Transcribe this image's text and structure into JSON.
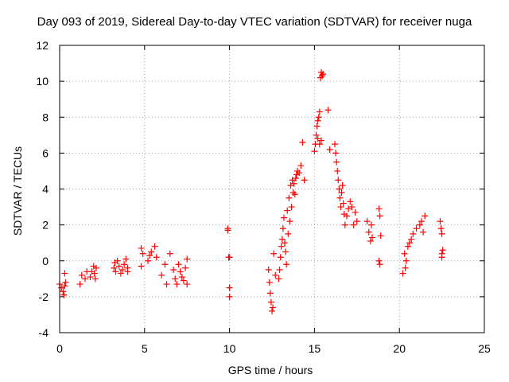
{
  "chart_data": {
    "type": "scatter",
    "title": "Day 093 of 2019, Sidereal Day-to-day VTEC variation (SDTVAR) for receiver nuga",
    "xlabel": "GPS time / hours",
    "ylabel": "SDTVAR / TECUs",
    "xlim": [
      0,
      25
    ],
    "ylim": [
      -4,
      12
    ],
    "xticks": [
      0,
      5,
      10,
      15,
      20,
      25
    ],
    "yticks": [
      -4,
      -2,
      0,
      2,
      4,
      6,
      8,
      10,
      12
    ],
    "grid": true,
    "marker": "+",
    "color": "#ff0000",
    "x": [
      0.0,
      0.1,
      0.2,
      0.25,
      0.3,
      0.3,
      0.35,
      1.2,
      1.3,
      1.5,
      1.6,
      1.8,
      1.9,
      2.0,
      2.05,
      2.1,
      2.15,
      3.2,
      3.25,
      3.3,
      3.4,
      3.5,
      3.6,
      3.7,
      3.8,
      3.9,
      4.0,
      4.0,
      4.8,
      4.8,
      4.9,
      5.2,
      5.3,
      5.4,
      5.6,
      5.7,
      6.0,
      6.2,
      6.3,
      6.5,
      6.7,
      6.8,
      6.9,
      7.0,
      7.1,
      7.2,
      7.3,
      7.4,
      7.5,
      7.5,
      9.9,
      9.9,
      9.95,
      10.0,
      10.0,
      10.0,
      12.3,
      12.35,
      12.4,
      12.45,
      12.5,
      12.55,
      12.6,
      12.7,
      12.9,
      12.95,
      13.0,
      13.05,
      13.1,
      13.15,
      13.2,
      13.25,
      13.3,
      13.35,
      13.4,
      13.45,
      13.5,
      13.55,
      13.6,
      13.65,
      13.7,
      13.75,
      13.8,
      13.85,
      13.9,
      13.95,
      14.0,
      14.1,
      14.2,
      14.3,
      14.4,
      15.0,
      15.05,
      15.1,
      15.15,
      15.2,
      15.25,
      15.3,
      15.35,
      15.4,
      15.45,
      15.2,
      15.3,
      15.4,
      15.5,
      15.8,
      15.9,
      16.2,
      16.25,
      16.3,
      16.35,
      16.4,
      16.45,
      16.5,
      16.55,
      16.6,
      16.65,
      16.7,
      16.75,
      16.8,
      16.9,
      17.0,
      17.1,
      17.2,
      17.3,
      17.4,
      17.5,
      18.1,
      18.2,
      18.3,
      18.35,
      18.4,
      18.8,
      18.85,
      18.9,
      18.8,
      18.85,
      20.2,
      20.3,
      20.35,
      20.4,
      20.5,
      20.6,
      20.7,
      20.8,
      21.0,
      21.2,
      21.3,
      21.4,
      21.5,
      22.4,
      22.45,
      22.5,
      22.55,
      22.5,
      22.5
    ],
    "y": [
      -1.3,
      -1.5,
      -1.7,
      -1.9,
      -1.4,
      -0.7,
      -1.2,
      -1.3,
      -0.8,
      -1.0,
      -0.6,
      -0.9,
      -0.6,
      -0.3,
      -0.7,
      -1.0,
      -0.4,
      -0.4,
      -0.1,
      -0.6,
      0.0,
      -0.3,
      -0.7,
      -0.5,
      -0.2,
      0.1,
      -0.4,
      -0.6,
      0.7,
      -0.3,
      0.4,
      0.0,
      0.3,
      0.5,
      0.8,
      0.2,
      -0.8,
      -0.2,
      -1.3,
      0.4,
      -0.5,
      -1.0,
      -1.3,
      -0.2,
      -0.6,
      -0.9,
      -1.1,
      -0.4,
      -1.3,
      0.1,
      1.8,
      1.7,
      0.2,
      0.2,
      -1.5,
      -2.0,
      -0.5,
      -1.2,
      -1.8,
      -2.3,
      -2.8,
      -2.6,
      0.4,
      -0.8,
      -1.0,
      -0.5,
      0.2,
      0.8,
      1.2,
      1.8,
      2.4,
      1.0,
      0.5,
      -0.2,
      2.8,
      1.5,
      3.5,
      2.2,
      4.2,
      3.0,
      4.5,
      3.8,
      4.3,
      3.7,
      4.6,
      4.8,
      5.0,
      4.9,
      5.3,
      6.6,
      4.5,
      6.1,
      6.5,
      7.0,
      7.5,
      7.8,
      8.0,
      8.3,
      10.2,
      10.5,
      10.3,
      6.8,
      6.5,
      6.7,
      10.4,
      8.4,
      6.2,
      6.5,
      6.0,
      5.5,
      5.0,
      4.5,
      4.0,
      3.5,
      3.0,
      3.8,
      4.2,
      3.2,
      2.6,
      2.0,
      2.5,
      2.9,
      3.3,
      3.0,
      2.0,
      2.7,
      2.2,
      2.2,
      1.6,
      1.1,
      2.0,
      1.3,
      2.9,
      2.5,
      1.4,
      0.0,
      -0.2,
      -0.7,
      0.4,
      -0.4,
      0.0,
      0.8,
      1.0,
      1.2,
      1.5,
      1.8,
      2.0,
      2.2,
      1.6,
      2.5,
      2.2,
      1.8,
      1.5,
      0.6,
      0.4,
      0.2
    ]
  }
}
